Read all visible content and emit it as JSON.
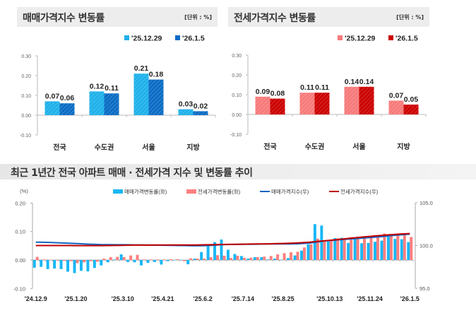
{
  "sale_panel": {
    "title": "매매가격지수 변동률",
    "unit": "[단위 : %]"
  },
  "jeonse_panel": {
    "title": "전세가격지수 변동률",
    "unit": "[단위 : %]"
  },
  "trend_panel": {
    "title": "최근 1년간 전국 아파트 매매 · 전세가격 지수 및 변동률 추이"
  },
  "colors": {
    "sale_prev": "#1fb1ea",
    "sale_curr": "#0b6cc4",
    "jeonse_prev": "#f77a7a",
    "jeonse_curr": "#cc0000",
    "sale_bar": "#19b7f5",
    "jeonse_bar": "#ff7f7f",
    "sale_line": "#1565c0",
    "jeonse_line": "#c00000"
  },
  "chart_data": [
    {
      "type": "bar",
      "title": "매매가격지수 변동률",
      "categories": [
        "전국",
        "수도권",
        "서울",
        "지방"
      ],
      "series": [
        {
          "name": "'25.12.29",
          "values": [
            0.07,
            0.12,
            0.21,
            0.03
          ],
          "labels": [
            "0.07",
            "0.12",
            "0.21",
            "0.03"
          ]
        },
        {
          "name": "'26.1.5",
          "values": [
            0.06,
            0.11,
            0.18,
            0.02
          ],
          "labels": [
            "0.06",
            "0.11",
            "0.18",
            "0.02"
          ]
        }
      ],
      "ylim": [
        -0.1,
        0.3
      ],
      "yticks": [
        "0.30",
        "0.20",
        "0.10",
        "0.00",
        "-0.10"
      ],
      "legend": "top-right"
    },
    {
      "type": "bar",
      "title": "전세가격지수 변동률",
      "categories": [
        "전국",
        "수도권",
        "서울",
        "지방"
      ],
      "series": [
        {
          "name": "'25.12.29",
          "values": [
            0.09,
            0.11,
            0.14,
            0.07
          ],
          "labels": [
            "0.09",
            "0.11",
            "0.14",
            "0.07"
          ]
        },
        {
          "name": "'26.1.5",
          "values": [
            0.08,
            0.11,
            0.14,
            0.05
          ],
          "labels": [
            "0.08",
            "0.11",
            "0.14",
            "0.05"
          ]
        }
      ],
      "ylim": [
        -0.1,
        0.3
      ],
      "yticks": [
        "0.30",
        "0.20",
        "0.10",
        "0.00",
        "-0.10"
      ],
      "legend": "top-right"
    },
    {
      "type": "bar+line",
      "title": "최근 1년간 전국 아파트 매매 · 전세가격 지수 및 변동률 추이",
      "ylabel": "(%)",
      "ylim": [
        -0.1,
        0.2
      ],
      "yticks": [
        "0.20",
        "0.10",
        "0.00",
        "-0.10"
      ],
      "y2lim": [
        95.0,
        105.0
      ],
      "y2ticks": [
        "105.0",
        "100.0",
        "95.0"
      ],
      "xtick_labels": [
        "'24.12.9",
        "'25.1.20",
        "'25.3.10",
        "'25.4.21",
        "'25.6.2",
        "'25.7.14",
        "'25.8.25",
        "'25.10.13",
        "'25.11.24",
        "'26.1.5"
      ],
      "xtick_weeks": [
        0,
        6,
        13,
        19,
        25,
        31,
        37,
        44,
        50,
        56
      ],
      "legend": "top",
      "series": [
        {
          "name": "매매가격변동률(좌)",
          "kind": "bar",
          "axis": "left",
          "values": [
            -0.027,
            -0.024,
            -0.032,
            -0.03,
            -0.032,
            -0.041,
            -0.046,
            -0.038,
            -0.04,
            -0.028,
            -0.019,
            -0.008,
            0.002,
            0.02,
            -0.007,
            -0.008,
            -0.019,
            -0.01,
            -0.007,
            -0.016,
            -0.004,
            0.0,
            -0.001,
            -0.015,
            0.005,
            0.028,
            0.048,
            0.063,
            0.072,
            0.036,
            0.021,
            0.014,
            0.005,
            0.01,
            0.01,
            0.002,
            0.005,
            0.001,
            0.007,
            0.016,
            0.033,
            0.055,
            0.126,
            0.121,
            0.065,
            0.077,
            0.078,
            0.06,
            0.075,
            0.059,
            0.06,
            0.064,
            0.068,
            0.082,
            0.074,
            0.073,
            0.063
          ]
        },
        {
          "name": "전세가격변동률(좌)",
          "kind": "bar",
          "axis": "left",
          "values": [
            0.011,
            0.002,
            0.001,
            -0.002,
            -0.003,
            -0.004,
            -0.011,
            -0.008,
            -0.004,
            -0.006,
            0.005,
            0.01,
            0.011,
            0.01,
            0.016,
            0.018,
            0.002,
            0.002,
            0.002,
            0.002,
            0.003,
            0.003,
            -0.004,
            0.006,
            0.005,
            0.005,
            0.01,
            0.017,
            0.015,
            0.007,
            0.015,
            0.008,
            0.008,
            0.01,
            0.012,
            0.014,
            0.02,
            0.024,
            0.027,
            0.029,
            0.044,
            0.055,
            0.075,
            0.066,
            0.07,
            0.076,
            0.077,
            0.08,
            0.082,
            0.08,
            0.082,
            0.087,
            0.093,
            0.085,
            0.09,
            0.092,
            0.081
          ]
        },
        {
          "name": "매매가격지수(우)",
          "kind": "line",
          "axis": "right",
          "values": [
            100.4,
            100.38,
            100.36,
            100.33,
            100.3,
            100.27,
            100.24,
            100.2,
            100.16,
            100.13,
            100.11,
            100.1,
            100.09,
            100.09,
            100.08,
            100.07,
            100.06,
            100.05,
            100.04,
            100.03,
            100.02,
            100.01,
            100.0,
            99.98,
            99.97,
            99.98,
            100.0,
            100.05,
            100.1,
            100.12,
            100.13,
            100.14,
            100.15,
            100.16,
            100.17,
            100.18,
            100.18,
            100.18,
            100.19,
            100.2,
            100.24,
            100.29,
            100.4,
            100.52,
            100.58,
            100.64,
            100.7,
            100.76,
            100.82,
            100.87,
            100.93,
            100.99,
            101.06,
            101.14,
            101.21,
            101.27,
            101.33
          ]
        },
        {
          "name": "전세가격지수(우)",
          "kind": "line",
          "axis": "right",
          "values": [
            100.0,
            100.0,
            100.0,
            100.0,
            100.0,
            100.0,
            99.99,
            99.99,
            99.99,
            99.99,
            99.99,
            100.0,
            100.01,
            100.02,
            100.04,
            100.05,
            100.05,
            100.05,
            100.06,
            100.06,
            100.06,
            100.06,
            100.06,
            100.07,
            100.07,
            100.08,
            100.09,
            100.11,
            100.12,
            100.13,
            100.15,
            100.16,
            100.17,
            100.18,
            100.19,
            100.2,
            100.22,
            100.24,
            100.27,
            100.3,
            100.34,
            100.4,
            100.48,
            100.54,
            100.61,
            100.68,
            100.76,
            100.84,
            100.92,
            101.0,
            101.07,
            101.14,
            101.2,
            101.26,
            101.31,
            101.36,
            101.4
          ]
        }
      ]
    }
  ]
}
